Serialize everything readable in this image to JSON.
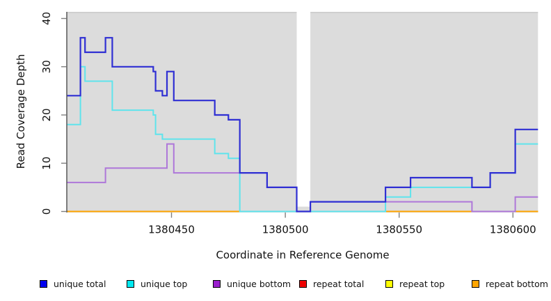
{
  "chart_data": {
    "type": "line",
    "subtype": "step",
    "title": "",
    "xlabel": "Coordinate in Reference Genome",
    "ylabel": "Read Coverage Depth",
    "xlim": [
      1380404,
      1380611
    ],
    "ylim": [
      0,
      41
    ],
    "x_ticks": [
      1380450,
      1380500,
      1380550,
      1380600
    ],
    "y_ticks": [
      0,
      10,
      20,
      30,
      40
    ],
    "grid": false,
    "panel_background": "#dcdcdc",
    "gap_region": {
      "from": 1380505,
      "to": 1380511,
      "top_value": 41,
      "bottom_value": 1,
      "fill": "#ffffff"
    },
    "series": [
      {
        "name": "unique total",
        "color": "#2f2fd3",
        "steps": [
          [
            1380404,
            24
          ],
          [
            1380410,
            36
          ],
          [
            1380412,
            33
          ],
          [
            1380421,
            36
          ],
          [
            1380424,
            30
          ],
          [
            1380442,
            29
          ],
          [
            1380443,
            25
          ],
          [
            1380446,
            24
          ],
          [
            1380448,
            29
          ],
          [
            1380451,
            23
          ],
          [
            1380469,
            20
          ],
          [
            1380475,
            19
          ],
          [
            1380480,
            8
          ],
          [
            1380492,
            5
          ],
          [
            1380505,
            0
          ],
          [
            1380511,
            2
          ],
          [
            1380544,
            5
          ],
          [
            1380555,
            7
          ],
          [
            1380582,
            5
          ],
          [
            1380590,
            8
          ],
          [
            1380601,
            17
          ]
        ]
      },
      {
        "name": "unique top",
        "color": "#5fe4ec",
        "steps": [
          [
            1380404,
            18
          ],
          [
            1380410,
            30
          ],
          [
            1380412,
            27
          ],
          [
            1380424,
            21
          ],
          [
            1380442,
            20
          ],
          [
            1380443,
            16
          ],
          [
            1380446,
            15
          ],
          [
            1380469,
            12
          ],
          [
            1380475,
            11
          ],
          [
            1380480,
            0
          ],
          [
            1380544,
            3
          ],
          [
            1380555,
            5
          ],
          [
            1380590,
            8
          ],
          [
            1380601,
            14
          ]
        ]
      },
      {
        "name": "unique bottom",
        "color": "#ae77d9",
        "steps": [
          [
            1380404,
            6
          ],
          [
            1380421,
            9
          ],
          [
            1380448,
            14
          ],
          [
            1380451,
            8
          ],
          [
            1380492,
            5
          ],
          [
            1380505,
            0
          ],
          [
            1380511,
            2
          ],
          [
            1380582,
            0
          ],
          [
            1380601,
            3
          ]
        ]
      },
      {
        "name": "repeat total",
        "color": "#ee0000",
        "steps": [
          [
            1380404,
            0
          ]
        ]
      },
      {
        "name": "repeat top",
        "color": "#ffff00",
        "steps": [
          [
            1380404,
            0
          ]
        ]
      },
      {
        "name": "repeat bottom",
        "color": "#ffa500",
        "steps": [
          [
            1380404,
            0
          ]
        ]
      }
    ],
    "baseline_blend_overlays": [
      {
        "color": "#8acb8f",
        "from": 1380480,
        "to": 1380544
      },
      {
        "color": "#c877b8",
        "from": 1380582,
        "to": 1380601
      }
    ],
    "legend": {
      "position": "bottom",
      "items": [
        {
          "label": "unique total",
          "color": "#0000f0"
        },
        {
          "label": "unique top",
          "color": "#00e9f0"
        },
        {
          "label": "unique bottom",
          "color": "#9a1fce"
        },
        {
          "label": "repeat total",
          "color": "#ee0000"
        },
        {
          "label": "repeat top",
          "color": "#ffff00"
        },
        {
          "label": "repeat bottom",
          "color": "#ffa500"
        }
      ]
    }
  }
}
